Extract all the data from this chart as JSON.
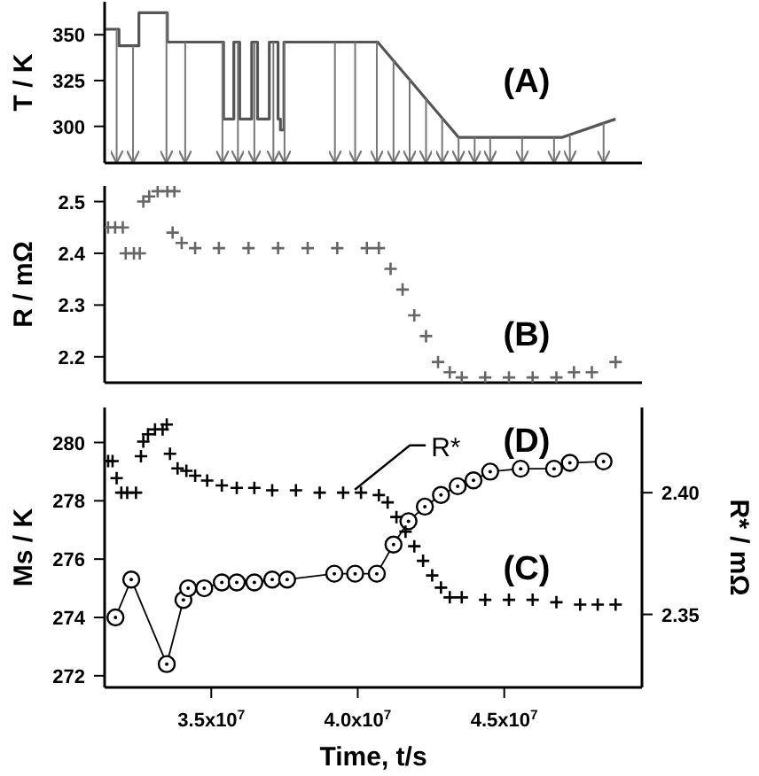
{
  "chart_data": [
    {
      "type": "line",
      "ylabel": "T / K",
      "annotations": [
        "(A)"
      ],
      "x": [
        31400000.0,
        31850000.0,
        31850000.0,
        32530000.0,
        32530000.0,
        33500000.0,
        33500000.0,
        35420000.0,
        35420000.0,
        35770000.0,
        35770000.0,
        35970000.0,
        35970000.0,
        36380000.0,
        36380000.0,
        36580000.0,
        36580000.0,
        36980000.0,
        36980000.0,
        37280000.0,
        37280000.0,
        37360000.0,
        37360000.0,
        37480000.0,
        37480000.0,
        40680000.0,
        43440000.0,
        46980000.0,
        48800000.0
      ],
      "values": [
        353,
        353,
        344,
        344,
        362,
        362,
        346,
        346,
        304,
        304,
        346,
        346,
        304,
        304,
        346,
        346,
        304,
        304,
        346,
        346,
        304,
        304,
        298,
        298,
        346,
        346,
        294,
        294,
        304
      ],
      "color": "#555555",
      "marker": "none",
      "xlim": [
        31360000.0,
        49700000.0
      ],
      "ylim": [
        280,
        368
      ],
      "yticks": [
        300,
        325,
        350
      ],
      "tick_labels": "y",
      "ref_lines": [
        {
          "axis": "x",
          "value": 31770000.0,
          "color": "#777777"
        },
        {
          "axis": "x",
          "value": 32330000.0,
          "color": "#777777"
        },
        {
          "axis": "x",
          "value": 33470000.0,
          "color": "#777777"
        },
        {
          "axis": "x",
          "value": 34110000.0,
          "color": "#777777"
        },
        {
          "axis": "x",
          "value": 35380000.0,
          "color": "#777777"
        },
        {
          "axis": "x",
          "value": 35910000.0,
          "color": "#777777"
        },
        {
          "axis": "x",
          "value": 36470000.0,
          "color": "#777777"
        },
        {
          "axis": "x",
          "value": 37120000.0,
          "color": "#777777"
        },
        {
          "axis": "x",
          "value": 37500000.0,
          "color": "#777777"
        },
        {
          "axis": "x",
          "value": 39220000.0,
          "color": "#777777"
        },
        {
          "axis": "x",
          "value": 39910000.0,
          "color": "#777777"
        },
        {
          "axis": "x",
          "value": 40650000.0,
          "color": "#777777"
        },
        {
          "axis": "x",
          "value": 41220000.0,
          "color": "#777777"
        },
        {
          "axis": "x",
          "value": 41770000.0,
          "color": "#777777"
        },
        {
          "axis": "x",
          "value": 42330000.0,
          "color": "#777777"
        },
        {
          "axis": "x",
          "value": 42880000.0,
          "color": "#777777"
        },
        {
          "axis": "x",
          "value": 43440000.0,
          "color": "#777777"
        },
        {
          "axis": "x",
          "value": 43990000.0,
          "color": "#777777"
        },
        {
          "axis": "x",
          "value": 44520000.0,
          "color": "#777777"
        },
        {
          "axis": "x",
          "value": 45610000.0,
          "color": "#777777"
        },
        {
          "axis": "x",
          "value": 46700000.0,
          "color": "#777777"
        },
        {
          "axis": "x",
          "value": 47240000.0,
          "color": "#777777"
        },
        {
          "axis": "x",
          "value": 48390000.0,
          "color": "#777777"
        }
      ]
    },
    {
      "type": "scatter",
      "ylabel": "R / mΩ",
      "annotations": [
        "(B)"
      ],
      "marker": "cross",
      "color": "#666666",
      "x": [
        31480000.0,
        31720000.0,
        31980000.0,
        32080000.0,
        32360000.0,
        32560000.0,
        32680000.0,
        32880000.0,
        33170000.0,
        33500000.0,
        33740000.0,
        33680000.0,
        33990000.0,
        34450000.0,
        35260000.0,
        36270000.0,
        37280000.0,
        38290000.0,
        39300000.0,
        40310000.0,
        40720000.0,
        41120000.0,
        41530000.0,
        41930000.0,
        42330000.0,
        42740000.0,
        43140000.0,
        43550000.0,
        44350000.0,
        45160000.0,
        45970000.0,
        46780000.0,
        47380000.0,
        47990000.0,
        48800000.0
      ],
      "values": [
        2.45,
        2.45,
        2.45,
        2.4,
        2.4,
        2.4,
        2.5,
        2.51,
        2.52,
        2.52,
        2.52,
        2.44,
        2.42,
        2.41,
        2.41,
        2.41,
        2.41,
        2.41,
        2.41,
        2.41,
        2.41,
        2.37,
        2.33,
        2.28,
        2.24,
        2.19,
        2.17,
        2.16,
        2.16,
        2.16,
        2.16,
        2.16,
        2.17,
        2.17,
        2.19
      ],
      "xlim": [
        31360000.0,
        49700000.0
      ],
      "ylim": [
        2.15,
        2.53
      ],
      "yticks": [
        2.2,
        2.3,
        2.4,
        2.5
      ],
      "tick_labels": "y"
    },
    {
      "type": "line",
      "xlabel": "Time, t/s",
      "ylabel": "Ms / K",
      "y2label": "R* / mΩ",
      "annotations": [
        "(D)",
        "(C)",
        {
          "text": "R*",
          "x": 39900000.0,
          "y": 278.2
        }
      ],
      "xlim": [
        31360000.0,
        49700000.0
      ],
      "xticks": [
        {
          "value": 35000000.0,
          "label": "3.5x10$^{7}$"
        },
        {
          "value": 40000000.0,
          "label": "4.0x10$^{7}$"
        },
        {
          "value": 45000000.0,
          "label": "4.5x10$^{7}$"
        }
      ],
      "ylim": [
        271.6,
        281.2
      ],
      "yticks": [
        272,
        274,
        276,
        278,
        280
      ],
      "y2lim": [
        2.32,
        2.435
      ],
      "y2ticks": [
        {
          "value": 2.35,
          "label": "2.35"
        },
        {
          "value": 2.4,
          "label": "2.40"
        }
      ],
      "series": [
        {
          "marker": "circle",
          "color": "#000000",
          "x": [
            31730000.0,
            32270000.0,
            33480000.0,
            34050000.0,
            34210000.0,
            34760000.0,
            35360000.0,
            35870000.0,
            36470000.0,
            37080000.0,
            37590000.0,
            39200000.0,
            39910000.0,
            40650000.0,
            41220000.0,
            41730000.0,
            42290000.0,
            42840000.0,
            43410000.0,
            43950000.0,
            44520000.0,
            45560000.0,
            46700000.0,
            47240000.0,
            48390000.0
          ],
          "values": [
            274.0,
            275.3,
            272.4,
            274.6,
            275.0,
            275.0,
            275.2,
            275.2,
            275.2,
            275.3,
            275.3,
            275.5,
            275.5,
            275.5,
            276.5,
            277.3,
            277.8,
            278.2,
            278.5,
            278.7,
            279.0,
            279.1,
            279.1,
            279.3,
            279.35
          ]
        },
        {
          "type": "scatter",
          "axis": "y2",
          "marker": "cross",
          "color": "#000000",
          "x": [
            31480000.0,
            31630000.0,
            31770000.0,
            31930000.0,
            32130000.0,
            32430000.0,
            32600000.0,
            32680000.0,
            32840000.0,
            33080000.0,
            33340000.0,
            33480000.0,
            33590000.0,
            33850000.0,
            34150000.0,
            34450000.0,
            34860000.0,
            35360000.0,
            35870000.0,
            36470000.0,
            37080000.0,
            37890000.0,
            38700000.0,
            39500000.0,
            40110000.0,
            40720000.0,
            41020000.0,
            41320000.0,
            41630000.0,
            41930000.0,
            42230000.0,
            42540000.0,
            42840000.0,
            43140000.0,
            43550000.0,
            44350000.0,
            45160000.0,
            45970000.0,
            46780000.0,
            47590000.0,
            48190000.0,
            48800000.0
          ],
          "values": [
            2.413,
            2.413,
            2.406,
            2.4,
            2.4,
            2.4,
            2.415,
            2.421,
            2.424,
            2.426,
            2.426,
            2.428,
            2.416,
            2.41,
            2.409,
            2.407,
            2.405,
            2.403,
            2.402,
            2.402,
            2.401,
            2.401,
            2.4,
            2.4,
            2.4,
            2.399,
            2.396,
            2.39,
            2.384,
            2.378,
            2.372,
            2.366,
            2.361,
            2.357,
            2.357,
            2.356,
            2.356,
            2.356,
            2.355,
            2.354,
            2.354,
            2.354
          ]
        }
      ]
    }
  ]
}
